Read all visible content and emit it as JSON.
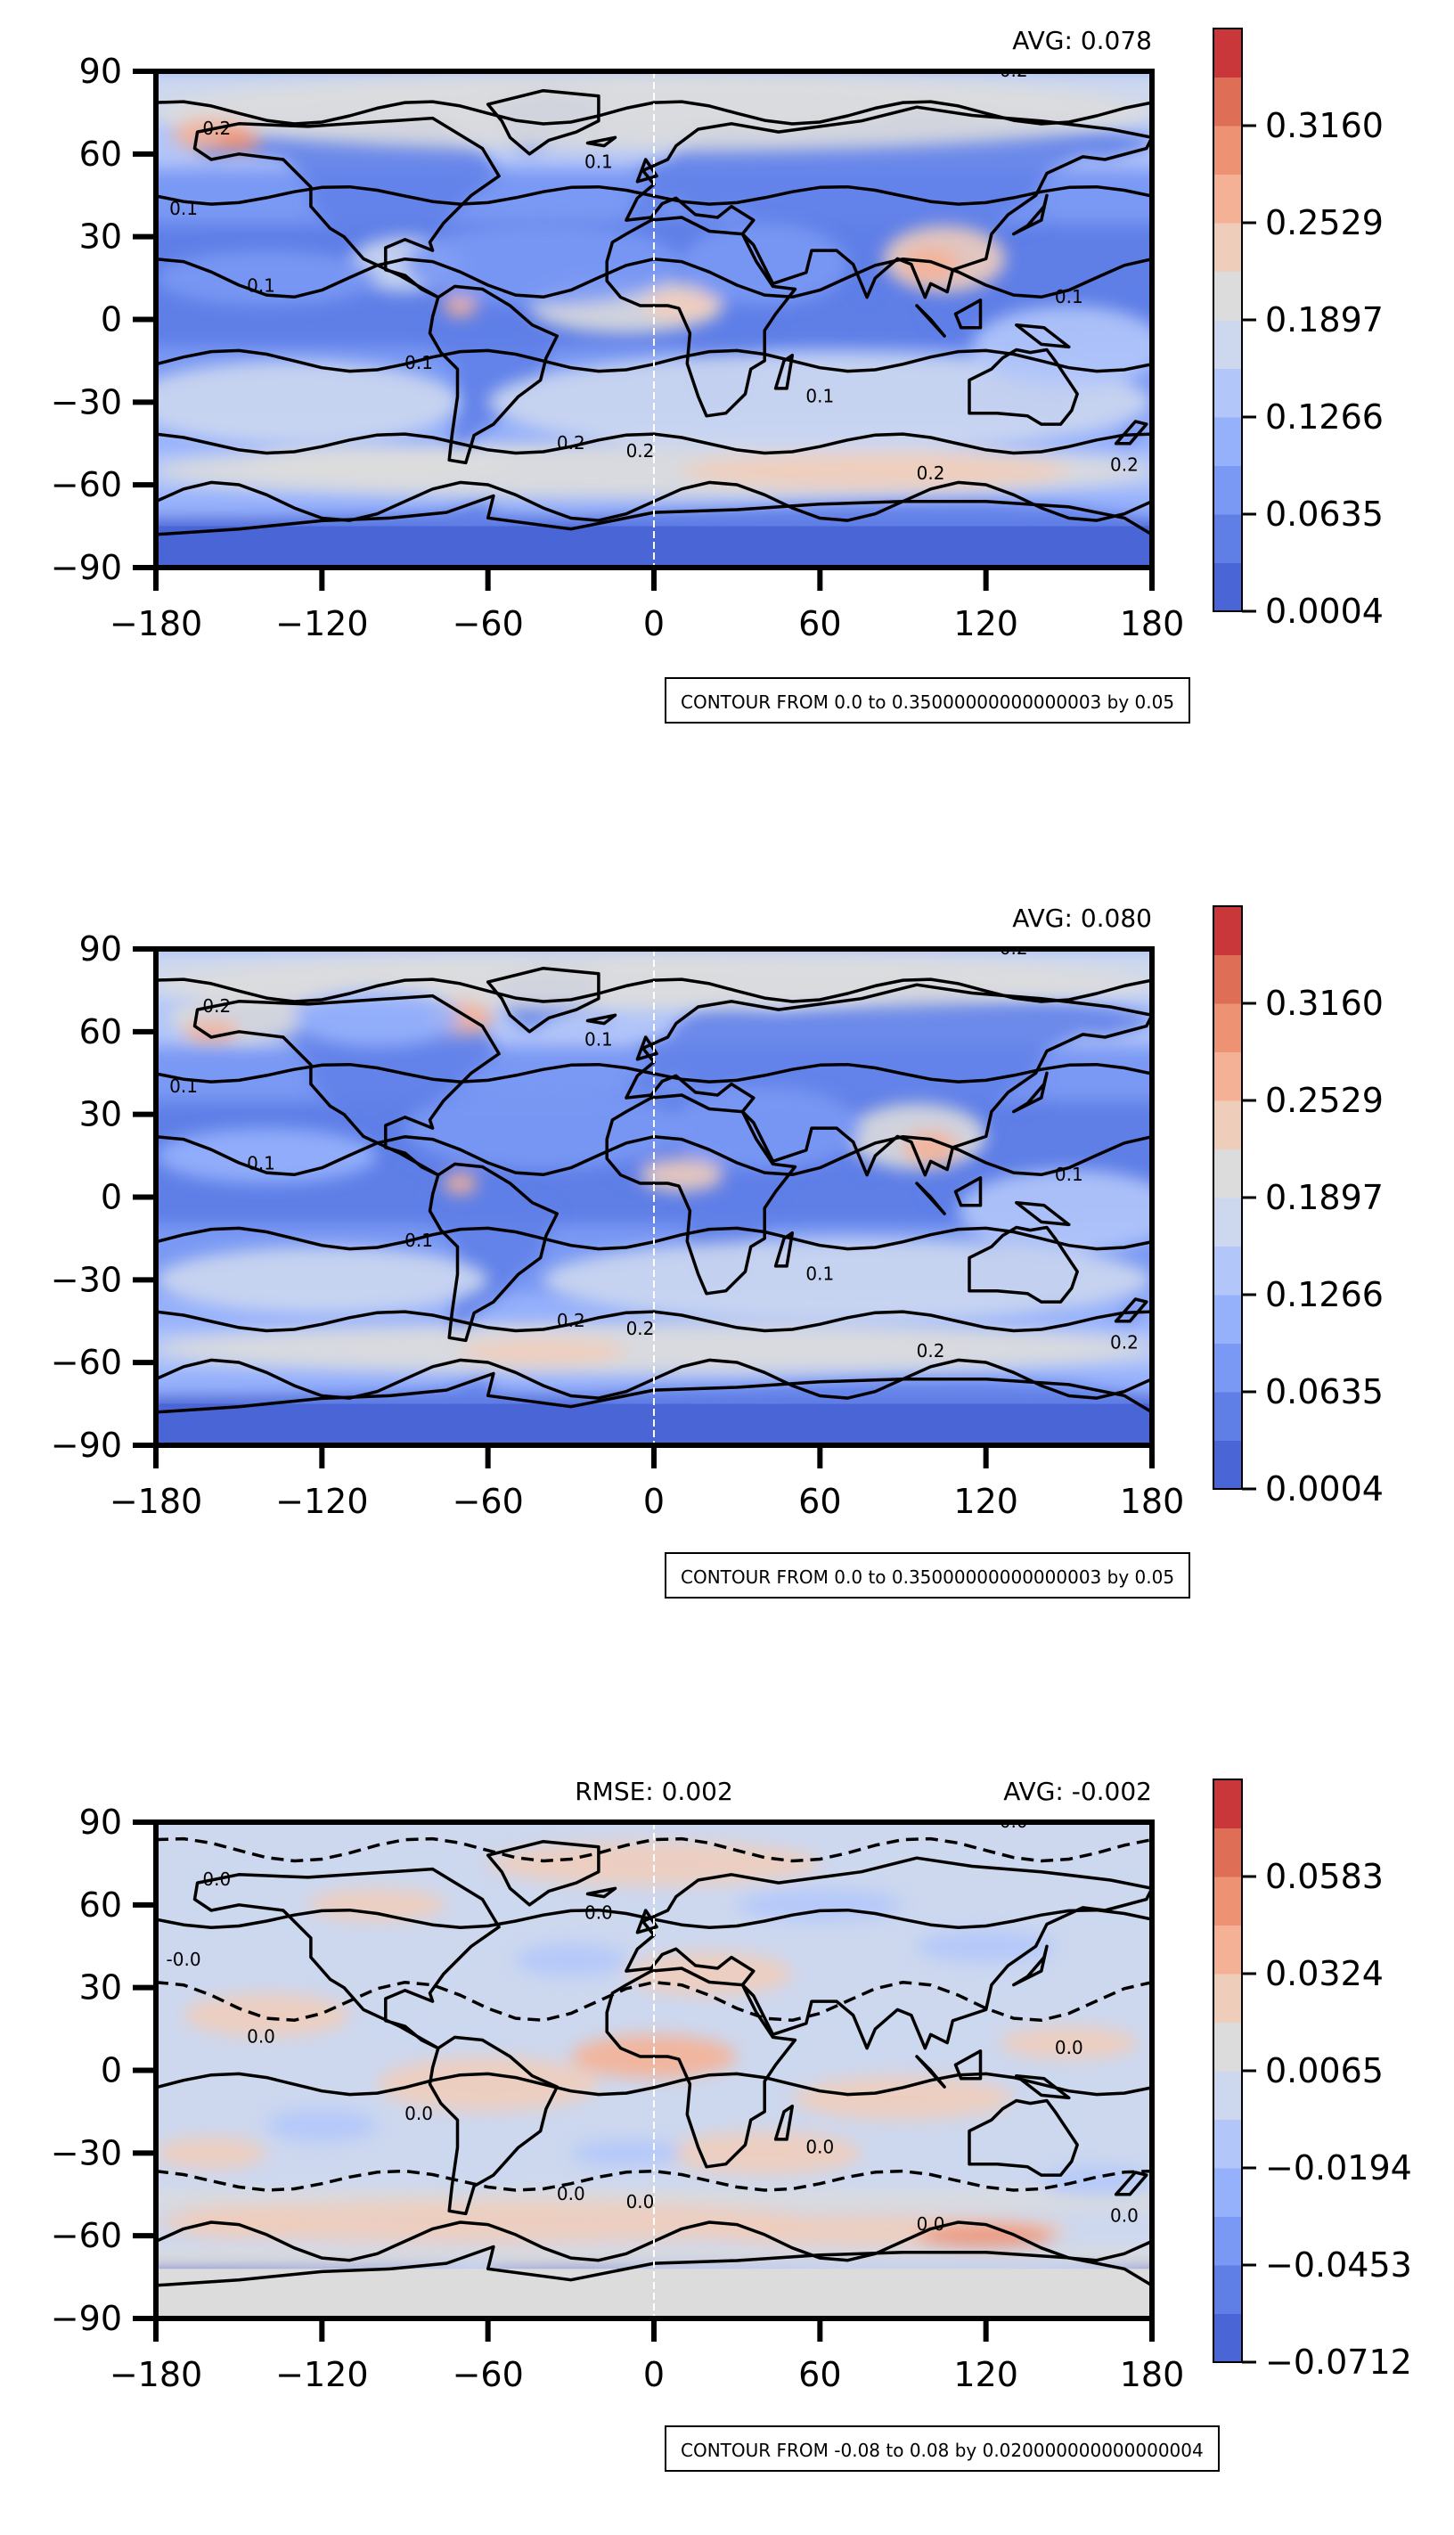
{
  "chart_data": [
    {
      "type": "heatmap",
      "panel": "top",
      "stats": {
        "avg": "AVG: 0.078",
        "rmse": ""
      },
      "xticks": [
        "−180",
        "−120",
        "−60",
        "0",
        "60",
        "120",
        "180"
      ],
      "yticks": [
        "90",
        "60",
        "30",
        "0",
        "−30",
        "−60",
        "−90"
      ],
      "xlim": [
        -180,
        180
      ],
      "ylim": [
        -90,
        90
      ],
      "colorbar": {
        "ticks": [
          "0.0004",
          "0.0635",
          "0.1266",
          "0.1897",
          "0.2529",
          "0.3160"
        ],
        "range": [
          0.0004,
          0.35
        ],
        "colors": [
          "#4a65d6",
          "#5f7fe7",
          "#7a99f4",
          "#96b1fc",
          "#b3c6f9",
          "#cdd8ef",
          "#dcdcdc",
          "#efcdbb",
          "#f5b195",
          "#ee9274",
          "#df6e56",
          "#c9373a"
        ]
      },
      "contour_labels": [
        "0.1",
        "0.1",
        "0.1",
        "0.1",
        "0.1",
        "0.1",
        "0.2",
        "0.2",
        "0.2",
        "0.2",
        "0.2",
        "0.2"
      ],
      "note": "CONTOUR FROM 0.0 to 0.35000000000000003 by 0.05"
    },
    {
      "type": "heatmap",
      "panel": "middle",
      "stats": {
        "avg": "AVG: 0.080",
        "rmse": ""
      },
      "xticks": [
        "−180",
        "−120",
        "−60",
        "0",
        "60",
        "120",
        "180"
      ],
      "yticks": [
        "90",
        "60",
        "30",
        "0",
        "−30",
        "−60",
        "−90"
      ],
      "xlim": [
        -180,
        180
      ],
      "ylim": [
        -90,
        90
      ],
      "colorbar": {
        "ticks": [
          "0.0004",
          "0.0635",
          "0.1266",
          "0.1897",
          "0.2529",
          "0.3160"
        ],
        "range": [
          0.0004,
          0.35
        ],
        "colors": [
          "#4a65d6",
          "#5f7fe7",
          "#7a99f4",
          "#96b1fc",
          "#b3c6f9",
          "#cdd8ef",
          "#dcdcdc",
          "#efcdbb",
          "#f5b195",
          "#ee9274",
          "#df6e56",
          "#c9373a"
        ]
      },
      "contour_labels": [
        "0.1",
        "0.1",
        "0.1",
        "0.1",
        "0.1",
        "0.1",
        "0.2",
        "0.2",
        "0.2",
        "0.2",
        "0.2",
        "0.2"
      ],
      "note": "CONTOUR FROM 0.0 to 0.35000000000000003 by 0.05"
    },
    {
      "type": "heatmap",
      "panel": "bottom",
      "stats": {
        "avg": "AVG: -0.002",
        "rmse": "RMSE: 0.002"
      },
      "xticks": [
        "−180",
        "−120",
        "−60",
        "0",
        "60",
        "120",
        "180"
      ],
      "yticks": [
        "90",
        "60",
        "30",
        "0",
        "−30",
        "−60",
        "−90"
      ],
      "xlim": [
        -180,
        180
      ],
      "ylim": [
        -90,
        90
      ],
      "colorbar": {
        "ticks": [
          "−0.0712",
          "−0.0453",
          "−0.0194",
          "0.0065",
          "0.0324",
          "0.0583"
        ],
        "range": [
          -0.0712,
          0.07
        ],
        "colors": [
          "#4a65d6",
          "#5f7fe7",
          "#7a99f4",
          "#96b1fc",
          "#b3c6f9",
          "#cdd8ef",
          "#dcdcdc",
          "#efcdbb",
          "#f5b195",
          "#ee9274",
          "#df6e56",
          "#c9373a"
        ]
      },
      "contour_labels": [
        "-0.0",
        "0.0",
        "0.0",
        "0.0",
        "0.0",
        "0.0",
        "0.0",
        "0.0",
        "0.0",
        "0.0",
        "0.0",
        "0.0"
      ],
      "note": "CONTOUR FROM -0.08 to 0.08 by 0.020000000000000004"
    }
  ]
}
